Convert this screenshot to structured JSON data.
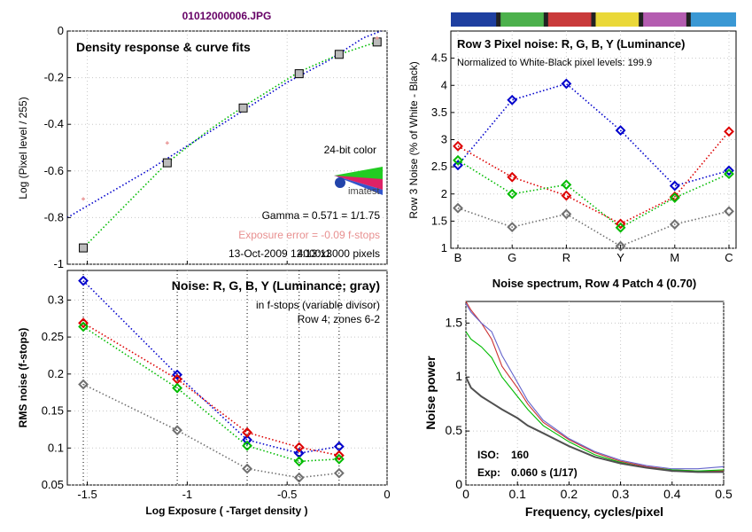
{
  "file_title": "01012000006.JPG",
  "chart_data": [
    {
      "type": "scatter",
      "title": "Density response & curve fits",
      "xlabel": "Log Exposure ( -Target density )",
      "ylabel": "Log (Pixel level / 255)",
      "xlim": [
        -1.6,
        0
      ],
      "ylim": [
        -1,
        0
      ],
      "xticks": [
        "-1.5",
        "-1",
        "-0.5",
        "0"
      ],
      "yticks": [
        "-1",
        "-0.8",
        "-0.6",
        "-0.4",
        "-0.2",
        "0"
      ],
      "grid": true,
      "texts": {
        "color_depth": "24-bit color",
        "logo": "imatest",
        "gamma": "Gamma = 0.571 = 1/1.75",
        "exposure_error": "Exposure error = -0.09 f-stops",
        "footer_date": "13-Oct-2009 12:13:11",
        "footer_pixels": "4000x3000 pixels"
      },
      "colors": {
        "exposure_error": "#e89090"
      },
      "points": [
        {
          "x": -1.52,
          "y": -0.93
        },
        {
          "x": -1.1,
          "y": -0.565
        },
        {
          "x": -0.72,
          "y": -0.33
        },
        {
          "x": -0.44,
          "y": -0.183
        },
        {
          "x": -0.24,
          "y": -0.1
        },
        {
          "x": -0.05,
          "y": -0.047
        }
      ],
      "pink_points": [
        {
          "x": -1.52,
          "y": -0.72
        },
        {
          "x": -1.1,
          "y": -0.48
        },
        {
          "x": -0.05,
          "y": -0.03
        }
      ],
      "series": [
        {
          "color": "#0000cc",
          "x": [
            -1.6,
            -1.2,
            -0.8,
            -0.5,
            -0.3,
            -0.12,
            -0.03
          ],
          "y": [
            -0.8,
            -0.6,
            -0.385,
            -0.22,
            -0.13,
            -0.03,
            0.0
          ]
        },
        {
          "color": "#00bb00",
          "x": [
            -1.52,
            -1.1,
            -0.9,
            -0.72,
            -0.44,
            -0.24,
            -0.05
          ],
          "y": [
            -0.93,
            -0.565,
            -0.43,
            -0.325,
            -0.175,
            -0.1,
            -0.047
          ]
        }
      ]
    },
    {
      "type": "line",
      "title": "Row 3 Pixel noise: R, G, B, Y (Luminance)",
      "subtitle": "Normalized to White-Black pixel levels: 199.9",
      "ylabel": "Row 3 Noise (% of White - Black)",
      "categories": [
        "B",
        "G",
        "R",
        "Y",
        "M",
        "C"
      ],
      "ylim": [
        1,
        5
      ],
      "yticks": [
        "1",
        "1.5",
        "2",
        "2.5",
        "3",
        "3.5",
        "4",
        "4.5"
      ],
      "grid": true,
      "color_bar": [
        "#1e3fa0",
        "#4cb14c",
        "#c93a3a",
        "#ead838",
        "#b45cb0",
        "#3a98d4"
      ],
      "series": [
        {
          "color": "#0000cc",
          "values": [
            2.53,
            3.73,
            4.03,
            3.17,
            2.15,
            2.43
          ]
        },
        {
          "color": "#dd0000",
          "values": [
            2.88,
            2.31,
            1.97,
            1.45,
            1.95,
            3.15
          ]
        },
        {
          "color": "#00bb00",
          "values": [
            2.62,
            2.0,
            2.17,
            1.38,
            1.93,
            2.37
          ]
        },
        {
          "color": "#707070",
          "values": [
            1.74,
            1.39,
            1.63,
            1.04,
            1.44,
            1.68
          ]
        }
      ]
    },
    {
      "type": "line",
      "title": "Noise: R, G, B, Y (Luminance; gray)",
      "subtitle_1": "in f-stops (variable divisor)",
      "subtitle_2": "Row 4; zones 6-2",
      "xlabel": "Log Exposure ( -Target density )",
      "ylabel": "RMS noise (f-stops)",
      "xlim": [
        -1.6,
        0
      ],
      "ylim": [
        0.05,
        0.34
      ],
      "xticks": [
        "-1.5",
        "-1",
        "-0.5",
        "0"
      ],
      "yticks": [
        "0.05",
        "0.1",
        "0.15",
        "0.2",
        "0.25",
        "0.3"
      ],
      "grid": true,
      "x": [
        -1.52,
        -1.05,
        -0.7,
        -0.44,
        -0.24
      ],
      "series": [
        {
          "color": "#0000cc",
          "values": [
            0.326,
            0.199,
            0.111,
            0.093,
            0.102
          ]
        },
        {
          "color": "#dd0000",
          "values": [
            0.269,
            0.193,
            0.121,
            0.101,
            0.09
          ]
        },
        {
          "color": "#00bb00",
          "values": [
            0.264,
            0.181,
            0.103,
            0.082,
            0.085
          ]
        },
        {
          "color": "#707070",
          "values": [
            0.186,
            0.124,
            0.072,
            0.06,
            0.066
          ]
        }
      ]
    },
    {
      "type": "line",
      "title": "Noise spectrum, Row 4 Patch 4 (0.70)",
      "xlabel": "Frequency, cycles/pixel",
      "ylabel": "Noise power",
      "xlim": [
        0,
        0.5
      ],
      "ylim": [
        0,
        1.7
      ],
      "xticks": [
        "0",
        "0.1",
        "0.2",
        "0.3",
        "0.4",
        "0.5"
      ],
      "yticks": [
        "0",
        "0.5",
        "1",
        "1.5"
      ],
      "grid": true,
      "iso_label": "ISO:",
      "iso_value": "160",
      "exp_label": "Exp:",
      "exp_value": "0.060 s  (1/17)",
      "series": [
        {
          "color": "#cc3333",
          "x": [
            0,
            0.01,
            0.03,
            0.05,
            0.07,
            0.1,
            0.12,
            0.15,
            0.2,
            0.25,
            0.3,
            0.35,
            0.4,
            0.45,
            0.5
          ],
          "y": [
            1.7,
            1.62,
            1.5,
            1.35,
            1.1,
            0.9,
            0.75,
            0.58,
            0.42,
            0.3,
            0.22,
            0.17,
            0.14,
            0.13,
            0.13
          ]
        },
        {
          "color": "#6666cc",
          "x": [
            0,
            0.01,
            0.03,
            0.05,
            0.07,
            0.1,
            0.12,
            0.15,
            0.2,
            0.25,
            0.3,
            0.35,
            0.4,
            0.45,
            0.5
          ],
          "y": [
            1.68,
            1.6,
            1.5,
            1.42,
            1.2,
            0.95,
            0.78,
            0.6,
            0.43,
            0.31,
            0.23,
            0.18,
            0.15,
            0.15,
            0.17
          ]
        },
        {
          "color": "#00bb00",
          "x": [
            0,
            0.01,
            0.03,
            0.05,
            0.07,
            0.1,
            0.12,
            0.15,
            0.2,
            0.25,
            0.3,
            0.35,
            0.4,
            0.45,
            0.5
          ],
          "y": [
            1.42,
            1.35,
            1.28,
            1.18,
            1.0,
            0.82,
            0.7,
            0.55,
            0.4,
            0.28,
            0.21,
            0.16,
            0.14,
            0.13,
            0.14
          ]
        },
        {
          "color": "#505050",
          "x": [
            0,
            0.01,
            0.03,
            0.05,
            0.07,
            0.1,
            0.12,
            0.15,
            0.2,
            0.25,
            0.3,
            0.35,
            0.4,
            0.45,
            0.5
          ],
          "y": [
            1.0,
            0.9,
            0.82,
            0.76,
            0.7,
            0.62,
            0.55,
            0.48,
            0.36,
            0.26,
            0.2,
            0.16,
            0.13,
            0.12,
            0.12
          ]
        }
      ]
    }
  ]
}
